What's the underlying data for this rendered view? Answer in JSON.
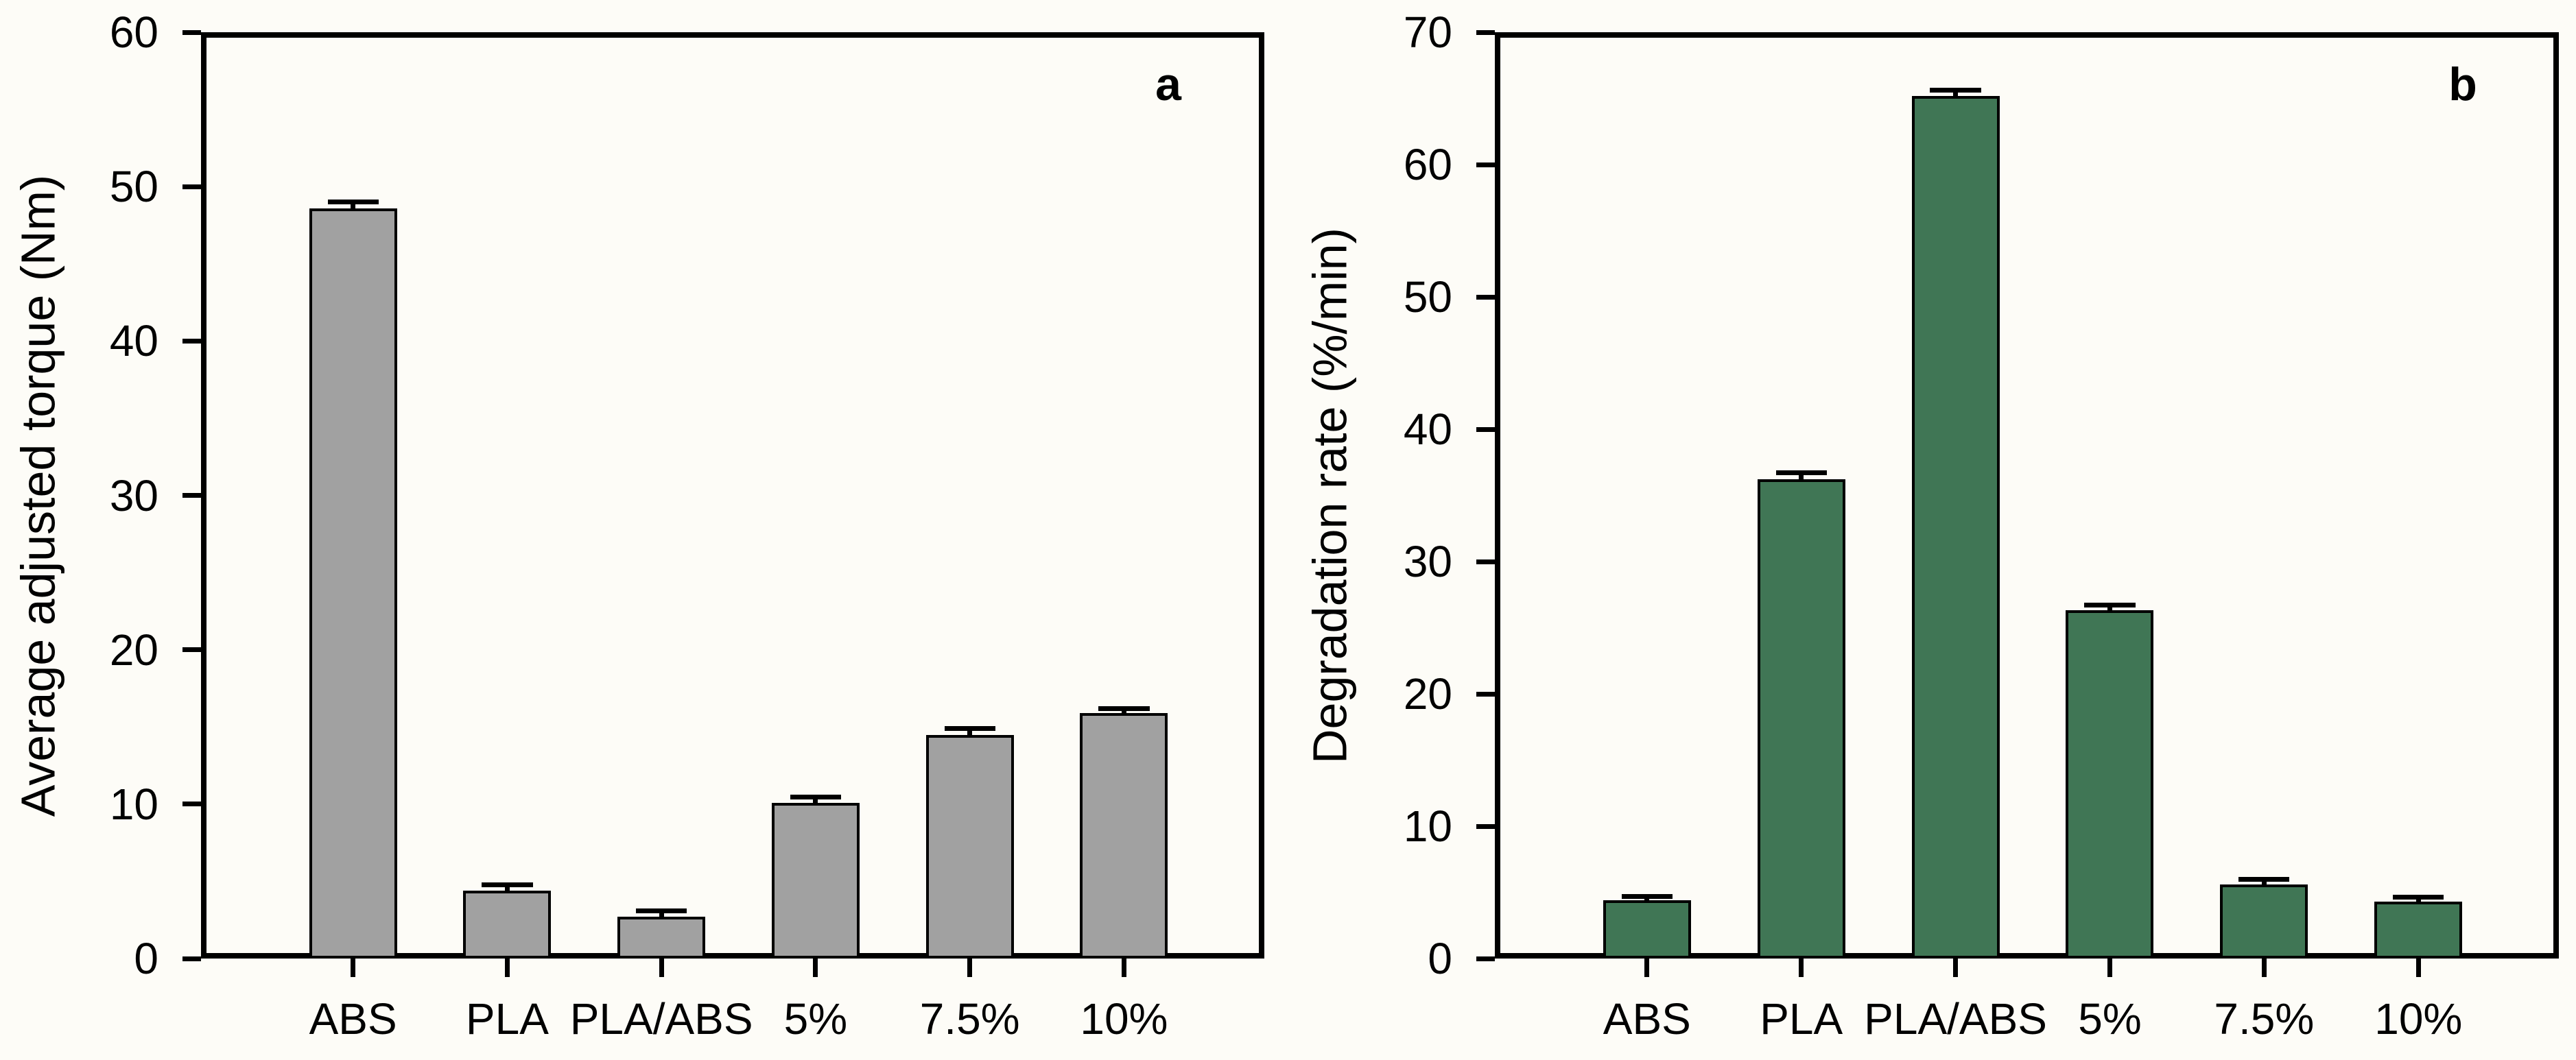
{
  "figure_background": "#fdfcf7",
  "axis_color": "#000000",
  "chart_data": [
    {
      "type": "bar",
      "panel_label": "a",
      "title": "",
      "xlabel": "",
      "ylabel": "Average adjusted torque (Nm)",
      "categories": [
        "ABS",
        "PLA",
        "PLA/ABS",
        "5%",
        "7.5%",
        "10%"
      ],
      "values": [
        48.6,
        4.4,
        2.7,
        10.1,
        14.5,
        15.9
      ],
      "errors": [
        0.25,
        0.2,
        0.25,
        0.2,
        0.25,
        0.15
      ],
      "ylim": [
        0,
        60
      ],
      "ytick_step": 10,
      "ytick_labels": [
        "0",
        "10",
        "20",
        "30",
        "40",
        "50",
        "60"
      ],
      "bar_color": "#a1a1a1",
      "bar_border_color": "#000000",
      "grid": false,
      "legend": "none"
    },
    {
      "type": "bar",
      "panel_label": "b",
      "title": "",
      "xlabel": "",
      "ylabel": "Degradation rate (%/min)",
      "categories": [
        "ABS",
        "PLA",
        "PLA/ABS",
        "5%",
        "7.5%",
        "10%"
      ],
      "values": [
        4.4,
        36.2,
        65.2,
        26.3,
        5.6,
        4.3
      ],
      "errors": [
        0.1,
        0.35,
        0.25,
        0.25,
        0.2,
        0.15
      ],
      "ylim": [
        0,
        70
      ],
      "ytick_step": 10,
      "ytick_labels": [
        "0",
        "10",
        "20",
        "30",
        "40",
        "50",
        "60",
        "70"
      ],
      "bar_color": "#407655",
      "bar_border_color": "#000000",
      "grid": false,
      "legend": "none"
    }
  ]
}
